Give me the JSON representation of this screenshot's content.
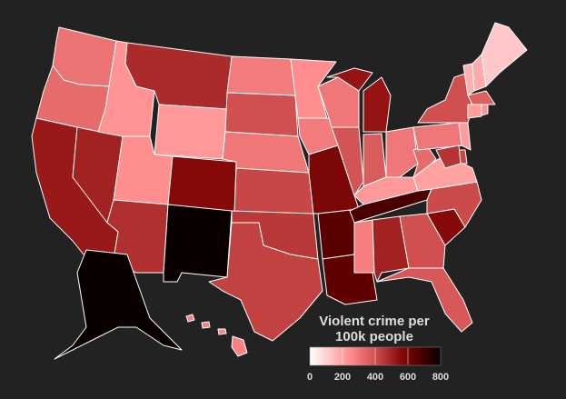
{
  "legend": {
    "title_line1": "Violent crime per",
    "title_line2": "100k people",
    "ticks": [
      "0",
      "200",
      "400",
      "600",
      "800"
    ],
    "range": [
      0,
      800
    ],
    "colormap": [
      {
        "value": 0,
        "color": "#ffffff"
      },
      {
        "value": 250,
        "color": "#ff8a8a"
      },
      {
        "value": 400,
        "color": "#d05050"
      },
      {
        "value": 550,
        "color": "#8b0a0a"
      },
      {
        "value": 650,
        "color": "#5a0000"
      },
      {
        "value": 800,
        "color": "#0a0000"
      }
    ]
  },
  "colors": {
    "background": "#222222",
    "border": "#ffffff"
  },
  "states": {
    "WA": 310,
    "OR": 330,
    "CA": 520,
    "NV": 500,
    "ID": 230,
    "MT": 480,
    "WY": 220,
    "UT": 240,
    "AZ": 470,
    "CO": 560,
    "NM": 820,
    "ND": 290,
    "SD": 400,
    "NE": 300,
    "KS": 420,
    "OK": 450,
    "TX": 430,
    "MN": 240,
    "IA": 290,
    "MO": 580,
    "AR": 650,
    "LA": 640,
    "WI": 300,
    "IL": 390,
    "MI": 530,
    "IN": 370,
    "OH": 300,
    "KY": 220,
    "TN": 680,
    "MS": 280,
    "AL": 500,
    "GA": 400,
    "FL": 380,
    "SC": 560,
    "NC": 410,
    "VA": 200,
    "WV": 330,
    "PA": 300,
    "NY": 400,
    "VT": 170,
    "NH": 180,
    "ME": 120,
    "MA": 360,
    "CT": 210,
    "RI": 230,
    "NJ": 210,
    "DE": 420,
    "MD": 460,
    "AK": 830,
    "HI": 270
  }
}
